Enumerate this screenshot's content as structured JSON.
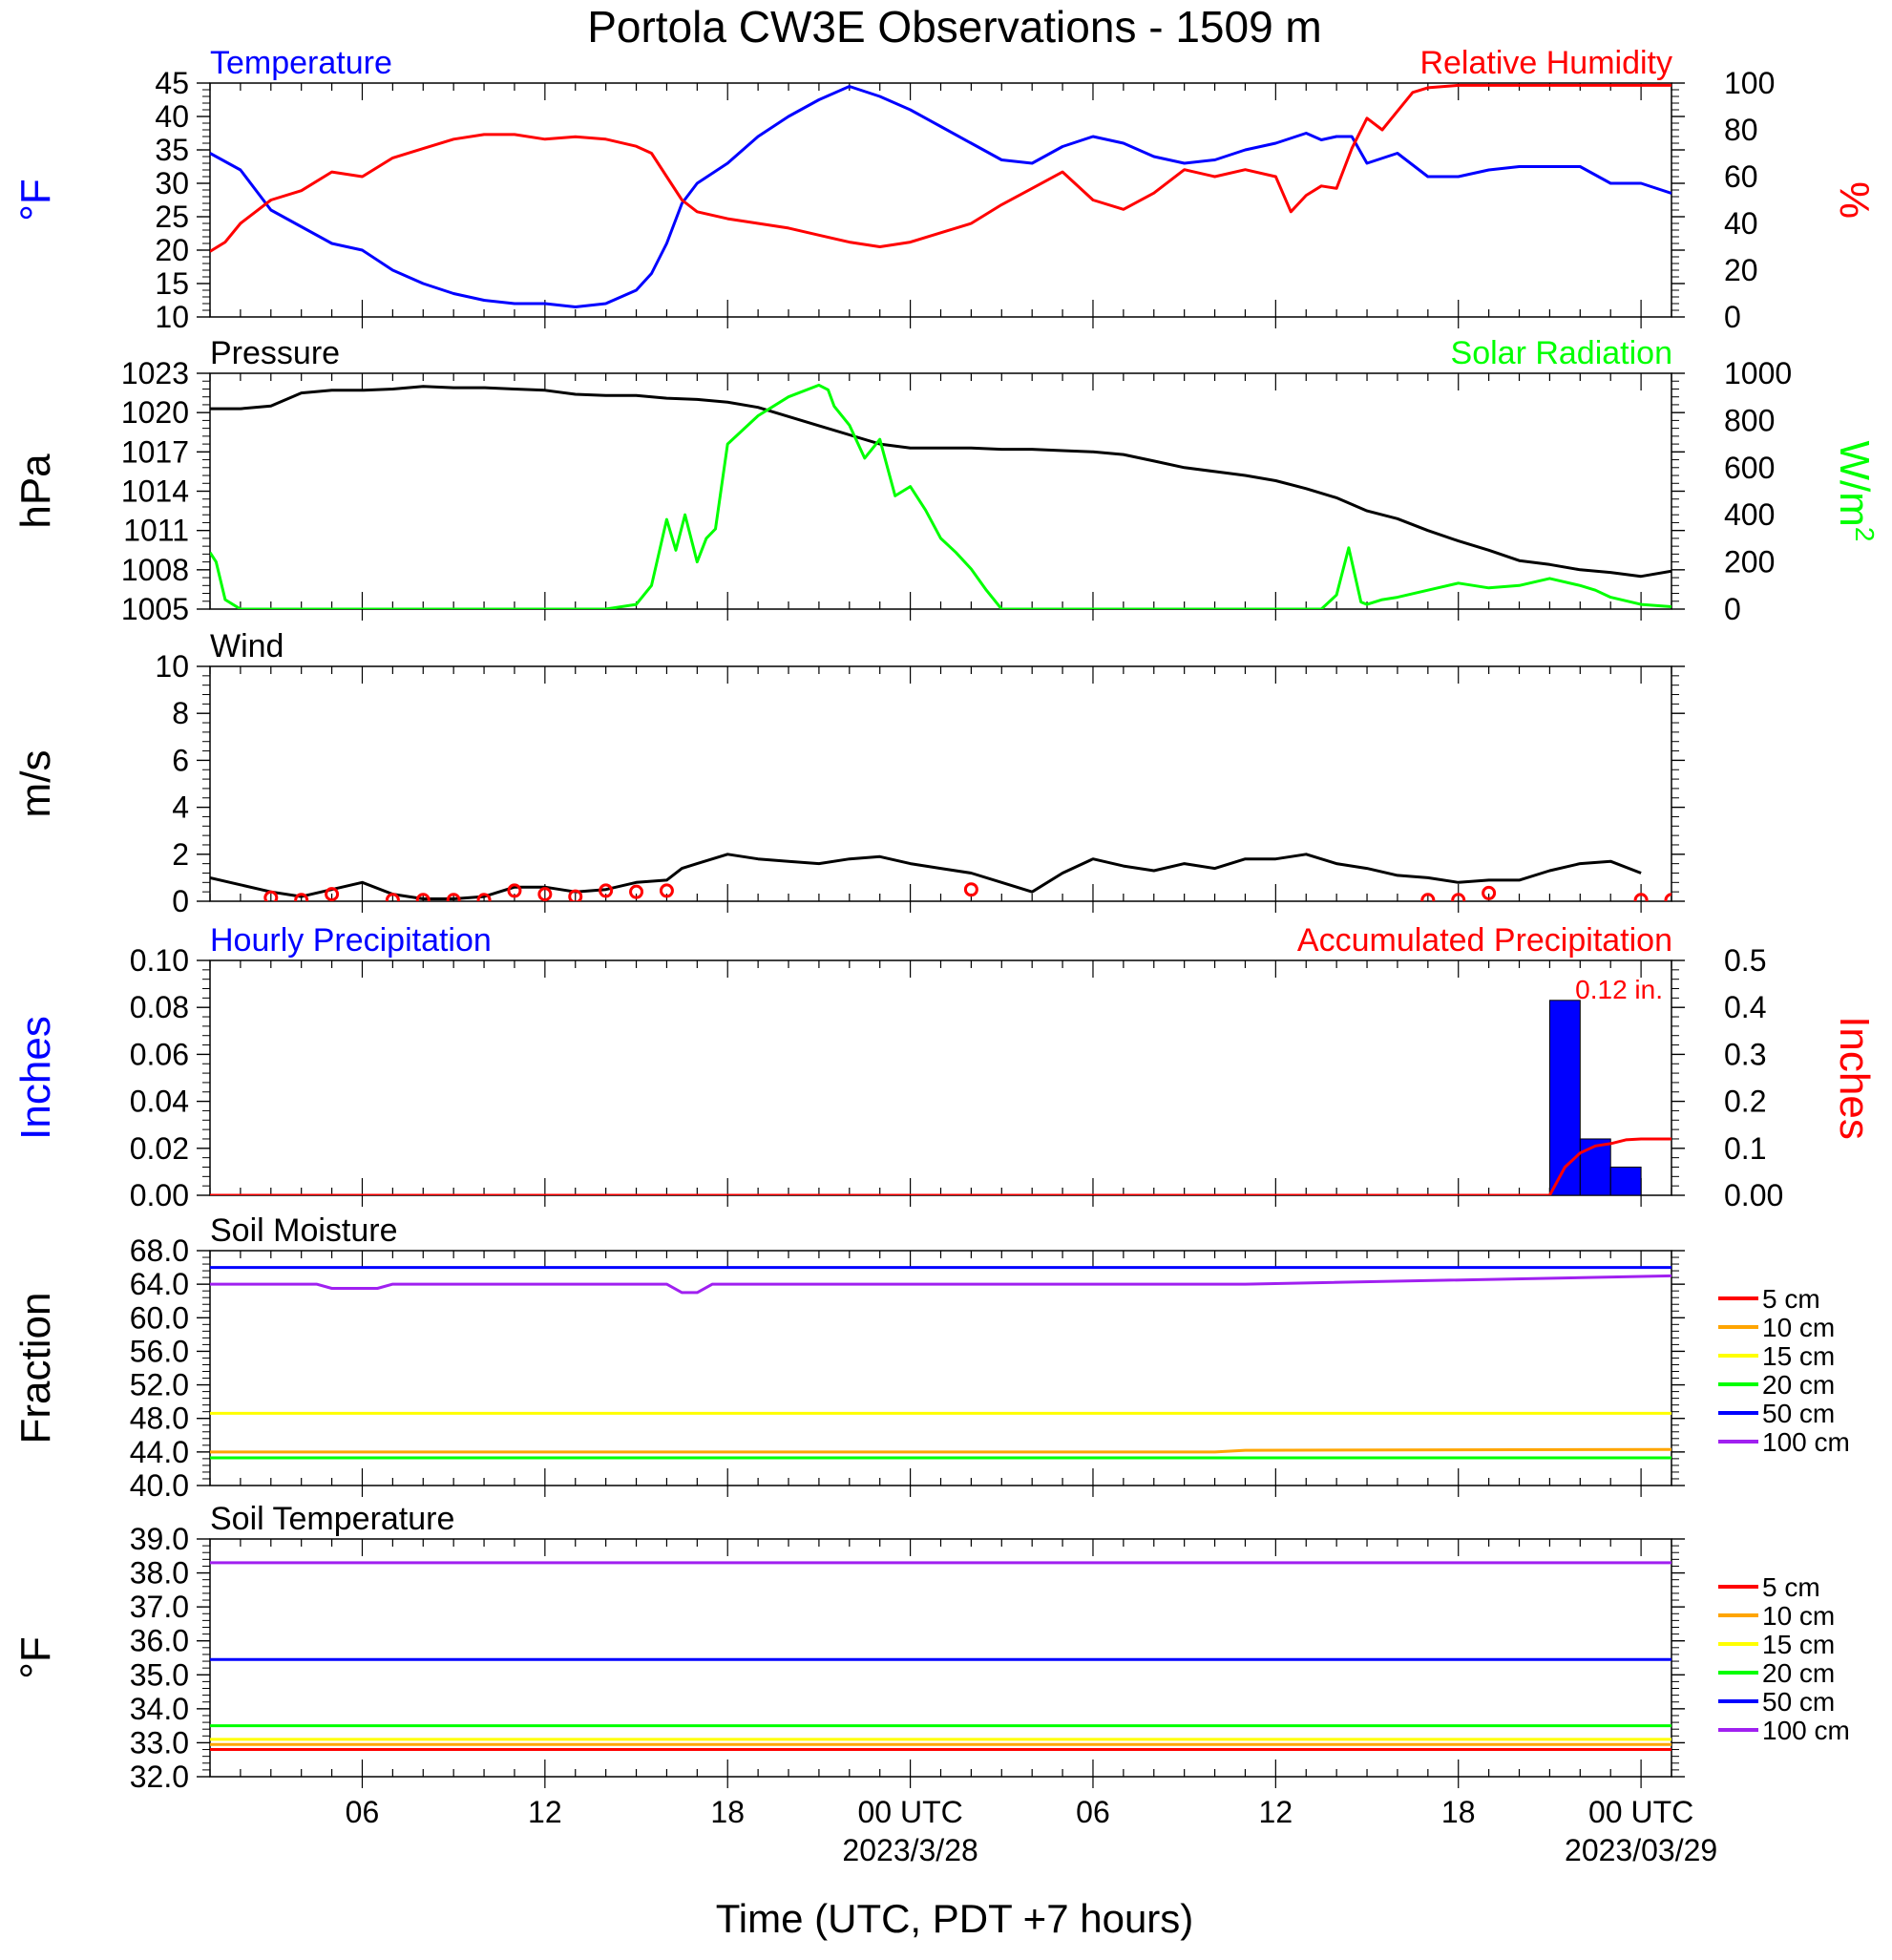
{
  "title": "Portola CW3E Observations - 1509 m",
  "x_axis": {
    "label": "Time (UTC, PDT +7 hours)",
    "ticks": [
      {
        "h": 6,
        "label": "06"
      },
      {
        "h": 12,
        "label": "12"
      },
      {
        "h": 18,
        "label": "18"
      },
      {
        "h": 24,
        "label": "00 UTC",
        "date": "2023/3/28"
      },
      {
        "h": 30,
        "label": "06"
      },
      {
        "h": 36,
        "label": "12"
      },
      {
        "h": 42,
        "label": "18"
      },
      {
        "h": 48,
        "label": "00 UTC",
        "date": "2023/03/29"
      }
    ],
    "range_hours": [
      1,
      49
    ]
  },
  "colors": {
    "blue": "#0000ff",
    "red": "#ff0000",
    "green": "#00ff00",
    "black": "#000000",
    "orange": "#ffa500",
    "yellow": "#ffff00",
    "purple": "#a020f0"
  },
  "chart_data": [
    {
      "type": "line",
      "panel": "temperature_humidity",
      "left_title": "Temperature",
      "right_title": "Relative Humidity",
      "ylabel_left": "°F",
      "ylabel_right": "%",
      "ylim_left": [
        10,
        45
      ],
      "ylim_right": [
        0,
        100
      ],
      "yticks_left": [
        "10",
        "15",
        "20",
        "25",
        "30",
        "35",
        "40",
        "45"
      ],
      "yticks_right": [
        "0",
        "20",
        "40",
        "60",
        "80",
        "100"
      ],
      "series": [
        {
          "name": "Temperature",
          "color": "#0000ff",
          "axis": "left",
          "x": [
            1,
            2,
            3,
            4,
            5,
            6,
            7,
            8,
            9,
            10,
            11,
            12,
            13,
            14,
            15,
            15.5,
            16,
            16.5,
            17,
            18,
            19,
            20,
            21,
            22,
            23,
            24,
            25,
            26,
            27,
            28,
            29,
            30,
            31,
            32,
            33,
            34,
            35,
            36,
            37,
            37.5,
            38,
            38.5,
            39,
            40,
            41,
            42,
            43,
            44,
            45,
            46,
            47,
            48,
            49
          ],
          "y": [
            34.5,
            32,
            26,
            23.5,
            21,
            20,
            17,
            15,
            13.5,
            12.5,
            12,
            12,
            11.5,
            12,
            14,
            16.5,
            21,
            27,
            30,
            33,
            37,
            40,
            42.5,
            44.5,
            43,
            41,
            38.5,
            36,
            33.5,
            33,
            35.5,
            37,
            36,
            34,
            33,
            33.5,
            35,
            36,
            37.5,
            36.5,
            37,
            37,
            33,
            34.5,
            31,
            31,
            32,
            32.5,
            32.5,
            32.5,
            30,
            30,
            28.5
          ]
        },
        {
          "name": "Relative Humidity",
          "color": "#ff0000",
          "axis": "right",
          "x": [
            1,
            1.5,
            2,
            2.5,
            3,
            4,
            5,
            6,
            7,
            8,
            9,
            10,
            11,
            12,
            13,
            14,
            15,
            15.5,
            16,
            16.5,
            17,
            18,
            19,
            20,
            21,
            22,
            23,
            24,
            25,
            26,
            27,
            28,
            29,
            30,
            31,
            32,
            33,
            34,
            35,
            36,
            36.5,
            37,
            37.5,
            38,
            38.5,
            39,
            39.5,
            40,
            40.5,
            41,
            42,
            43,
            44,
            45,
            46,
            47,
            48,
            49
          ],
          "y": [
            28,
            32,
            40,
            45,
            50,
            54,
            62,
            60,
            68,
            72,
            76,
            78,
            78,
            76,
            77,
            76,
            73,
            70,
            60,
            50,
            45,
            42,
            40,
            38,
            35,
            32,
            30,
            32,
            36,
            40,
            48,
            55,
            62,
            50,
            46,
            53,
            63,
            60,
            63,
            60,
            45,
            52,
            56,
            55,
            72,
            85,
            80,
            88,
            96,
            98,
            99,
            99,
            99,
            99,
            99,
            99,
            99,
            99
          ]
        }
      ]
    },
    {
      "type": "line",
      "panel": "pressure_solar",
      "left_title": "Pressure",
      "right_title": "Solar Radiation",
      "ylabel_left": "hPa",
      "ylabel_right": "W/m",
      "ylabel_right_sup": "2",
      "ylim_left": [
        1005,
        1023
      ],
      "ylim_right": [
        0,
        1000
      ],
      "yticks_left": [
        "1005",
        "1008",
        "1011",
        "1014",
        "1017",
        "1020",
        "1023"
      ],
      "yticks_right": [
        "0",
        "200",
        "400",
        "600",
        "800",
        "1000"
      ],
      "series": [
        {
          "name": "Pressure",
          "color": "#000000",
          "axis": "left",
          "x": [
            1,
            2,
            3,
            4,
            5,
            6,
            7,
            8,
            9,
            10,
            11,
            12,
            13,
            14,
            15,
            16,
            17,
            18,
            19,
            20,
            21,
            22,
            23,
            24,
            25,
            26,
            27,
            28,
            29,
            30,
            31,
            32,
            33,
            34,
            35,
            36,
            37,
            38,
            39,
            40,
            41,
            42,
            43,
            44,
            45,
            46,
            47,
            48,
            49
          ],
          "y": [
            1020.3,
            1020.3,
            1020.5,
            1021.5,
            1021.7,
            1021.7,
            1021.8,
            1022.0,
            1021.9,
            1021.9,
            1021.8,
            1021.7,
            1021.4,
            1021.3,
            1021.3,
            1021.1,
            1021.0,
            1020.8,
            1020.4,
            1019.7,
            1019.0,
            1018.3,
            1017.6,
            1017.3,
            1017.3,
            1017.3,
            1017.2,
            1017.2,
            1017.1,
            1017.0,
            1016.8,
            1016.3,
            1015.8,
            1015.5,
            1015.2,
            1014.8,
            1014.2,
            1013.5,
            1012.5,
            1011.9,
            1011.0,
            1010.2,
            1009.5,
            1008.7,
            1008.4,
            1008.0,
            1007.8,
            1007.5,
            1007.9
          ]
        },
        {
          "name": "Solar Radiation",
          "color": "#00ff00",
          "axis": "right",
          "x": [
            1,
            1.2,
            1.5,
            2,
            5,
            10,
            14,
            15,
            15.5,
            16,
            16.3,
            16.6,
            17,
            17.3,
            17.6,
            18,
            19,
            20,
            21,
            21.3,
            21.5,
            22,
            22.5,
            23,
            23.5,
            24,
            24.5,
            25,
            25.5,
            26,
            26.5,
            27,
            28,
            35,
            37.5,
            38,
            38.4,
            38.8,
            39,
            39.5,
            40,
            41,
            42,
            43,
            44,
            45,
            46,
            46.5,
            47,
            48,
            49
          ],
          "y": [
            240,
            200,
            40,
            0,
            0,
            0,
            0,
            20,
            100,
            380,
            250,
            400,
            200,
            300,
            340,
            700,
            820,
            900,
            950,
            930,
            860,
            780,
            640,
            720,
            480,
            520,
            420,
            300,
            240,
            170,
            80,
            0,
            0,
            0,
            0,
            60,
            260,
            30,
            20,
            40,
            50,
            80,
            110,
            90,
            100,
            130,
            100,
            80,
            50,
            20,
            10
          ]
        }
      ]
    },
    {
      "type": "line",
      "panel": "wind",
      "left_title": "Wind",
      "ylabel_left": "m/s",
      "ylim_left": [
        0,
        10
      ],
      "yticks_left": [
        "0",
        "2",
        "4",
        "6",
        "8",
        "10"
      ],
      "series": [
        {
          "name": "Wind",
          "color": "#000000",
          "axis": "left",
          "x": [
            1,
            2,
            3,
            4,
            5,
            6,
            7,
            8,
            9,
            10,
            11,
            12,
            13,
            14,
            15,
            16,
            16.5,
            17,
            18,
            19,
            20,
            21,
            22,
            23,
            24,
            25,
            26,
            27,
            28,
            29,
            30,
            31,
            32,
            33,
            34,
            35,
            36,
            37,
            38,
            39,
            40,
            41,
            42,
            43,
            44,
            45,
            46,
            47,
            48
          ],
          "y": [
            1.0,
            0.7,
            0.4,
            0.2,
            0.5,
            0.8,
            0.3,
            0.1,
            0.1,
            0.2,
            0.6,
            0.6,
            0.4,
            0.5,
            0.8,
            0.9,
            1.4,
            1.6,
            2.0,
            1.8,
            1.7,
            1.6,
            1.8,
            1.9,
            1.6,
            1.4,
            1.2,
            0.8,
            0.4,
            1.2,
            1.8,
            1.5,
            1.3,
            1.6,
            1.4,
            1.8,
            1.8,
            2.0,
            1.6,
            1.4,
            1.1,
            1.0,
            0.8,
            0.9,
            0.9,
            1.3,
            1.6,
            1.7,
            1.2
          ]
        },
        {
          "name": "Calm",
          "color": "#ff0000",
          "axis": "left",
          "x": [
            3,
            4,
            5,
            7,
            8,
            9,
            10,
            11,
            12,
            13,
            14,
            15,
            16,
            26,
            41,
            42,
            43,
            48,
            49
          ],
          "y": [
            0.15,
            0.05,
            0.3,
            0.05,
            0.05,
            0.05,
            0.05,
            0.45,
            0.3,
            0.2,
            0.45,
            0.4,
            0.45,
            0.5,
            0.05,
            0.05,
            0.35,
            0.05,
            0.05
          ]
        }
      ]
    },
    {
      "type": "bar",
      "panel": "precipitation",
      "left_title": "Hourly Precipitation",
      "right_title": "Accumulated Precipitation",
      "ylabel_left": "Inches",
      "ylabel_right": "Inches",
      "ylim_left": [
        0,
        0.1
      ],
      "ylim_right": [
        0,
        0.5
      ],
      "yticks_left": [
        "0.00",
        "0.02",
        "0.04",
        "0.06",
        "0.08",
        "0.10"
      ],
      "yticks_right": [
        "0.00",
        "0.1",
        "0.2",
        "0.3",
        "0.4",
        "0.5"
      ],
      "annotation": "0.12 in.",
      "series": [
        {
          "name": "Hourly Precipitation",
          "color": "#0000ff",
          "axis": "left",
          "x": [
            45,
            46,
            47
          ],
          "values": [
            0.083,
            0.024,
            0.012
          ]
        },
        {
          "name": "Accumulated Precipitation",
          "color": "#ff0000",
          "axis": "right",
          "x": [
            1,
            45,
            45.5,
            46,
            46.5,
            47,
            47.5,
            48,
            49
          ],
          "y": [
            0,
            0,
            0.06,
            0.09,
            0.105,
            0.11,
            0.118,
            0.12,
            0.12
          ]
        }
      ]
    },
    {
      "type": "line",
      "panel": "soil_moisture",
      "left_title": "Soil Moisture",
      "ylabel_left": "Fraction",
      "ylim_left": [
        40,
        68
      ],
      "yticks_left": [
        "40.0",
        "44.0",
        "48.0",
        "52.0",
        "56.0",
        "60.0",
        "64.0",
        "68.0"
      ],
      "series": [
        {
          "name": "5 cm",
          "color": "#ff0000",
          "axis": "left",
          "x": [
            1,
            49
          ],
          "y": [
            43.3,
            43.3
          ]
        },
        {
          "name": "10 cm",
          "color": "#ffa500",
          "axis": "left",
          "x": [
            1,
            34,
            35,
            49
          ],
          "y": [
            44.0,
            44.0,
            44.2,
            44.3
          ]
        },
        {
          "name": "15 cm",
          "color": "#ffff00",
          "axis": "left",
          "x": [
            1,
            49
          ],
          "y": [
            48.6,
            48.6
          ]
        },
        {
          "name": "20 cm",
          "color": "#00ff00",
          "axis": "left",
          "x": [
            1,
            49
          ],
          "y": [
            43.3,
            43.3
          ]
        },
        {
          "name": "50 cm",
          "color": "#0000ff",
          "axis": "left",
          "x": [
            1,
            49
          ],
          "y": [
            66.0,
            66.0
          ]
        },
        {
          "name": "100 cm",
          "color": "#a020f0",
          "axis": "left",
          "x": [
            1,
            4.5,
            5,
            6.5,
            7,
            16,
            16.5,
            17,
            17.5,
            35,
            49
          ],
          "y": [
            64.0,
            64.0,
            63.5,
            63.5,
            64.0,
            64.0,
            63.0,
            63.0,
            64.0,
            64.0,
            65.0
          ]
        }
      ],
      "legend_entries": [
        "5 cm",
        "10 cm",
        "15 cm",
        "20 cm",
        "50 cm",
        "100 cm"
      ]
    },
    {
      "type": "line",
      "panel": "soil_temperature",
      "left_title": "Soil Temperature",
      "ylabel_left": "°F",
      "ylim_left": [
        32,
        39
      ],
      "yticks_left": [
        "32.0",
        "33.0",
        "34.0",
        "35.0",
        "36.0",
        "37.0",
        "38.0",
        "39.0"
      ],
      "series": [
        {
          "name": "5 cm",
          "color": "#ff0000",
          "axis": "left",
          "x": [
            1,
            49
          ],
          "y": [
            32.8,
            32.8
          ]
        },
        {
          "name": "10 cm",
          "color": "#ffa500",
          "axis": "left",
          "x": [
            1,
            49
          ],
          "y": [
            32.95,
            32.95
          ]
        },
        {
          "name": "15 cm",
          "color": "#ffff00",
          "axis": "left",
          "x": [
            1,
            49
          ],
          "y": [
            33.1,
            33.1
          ]
        },
        {
          "name": "20 cm",
          "color": "#00ff00",
          "axis": "left",
          "x": [
            1,
            49
          ],
          "y": [
            33.5,
            33.5
          ]
        },
        {
          "name": "50 cm",
          "color": "#0000ff",
          "axis": "left",
          "x": [
            1,
            49
          ],
          "y": [
            35.45,
            35.45
          ]
        },
        {
          "name": "100 cm",
          "color": "#a020f0",
          "axis": "left",
          "x": [
            1,
            49
          ],
          "y": [
            38.3,
            38.3
          ]
        }
      ],
      "legend_entries": [
        "5 cm",
        "10 cm",
        "15 cm",
        "20 cm",
        "50 cm",
        "100 cm"
      ]
    }
  ]
}
